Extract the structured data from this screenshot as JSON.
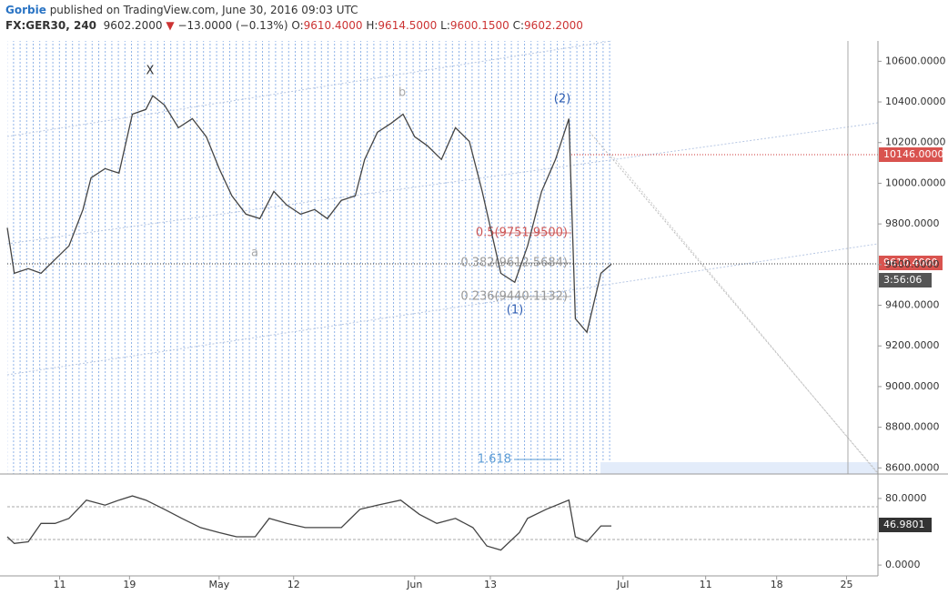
{
  "header": {
    "user": "Gorbie",
    "published": "published on TradingView.com, June 30, 2016 09:03 UTC",
    "symbol": "FX:GER30, 240",
    "last": "9602.2000",
    "change": "−13.0000 (−0.13%)",
    "open_label": "O:",
    "open": "9610.4000",
    "high_label": "H:",
    "high": "9614.5000",
    "low_label": "L:",
    "low": "9600.1500",
    "close_label": "C:",
    "close": "9602.2000"
  },
  "annotations": {
    "x": "X",
    "a": "a",
    "b": "b",
    "w2": "(2)",
    "w1": "(1)",
    "fib05": "0.5(9751.9500)",
    "fib0382": "0.382(9612.5684)",
    "fib0236": "0.236(9440.1132)",
    "fib1618": "1.618"
  },
  "price_labels": {
    "level": "10146.0000",
    "current": "9610.4000",
    "timer": "3:56:06",
    "rsi": "46.9801"
  },
  "chart_data": [
    {
      "type": "line",
      "color": "#444444",
      "x": [
        -4.5,
        -3.9,
        -2.7,
        -1.6,
        -0.4,
        0.8,
        2.0,
        2.7,
        3.9,
        5.1,
        6.25,
        7.4,
        8.0,
        9.0,
        10.2,
        11.4,
        12.6,
        13.7,
        14.8,
        16.0,
        17.2,
        18.4,
        19.5,
        20.7,
        21.9,
        23.0,
        24.2,
        25.4,
        26.2,
        27.3,
        28.5,
        29.5,
        30.5,
        31.6,
        32.8,
        34.0,
        35.2,
        36.3,
        37.1,
        37.9,
        39.1,
        40.2,
        41.4,
        42.6,
        43.75,
        44.3,
        45.3,
        46.5,
        47.4
      ],
      "values": [
        9781,
        9557,
        9580,
        9557,
        9625,
        9692,
        9871,
        10027,
        10072,
        10050,
        10340,
        10363,
        10430,
        10385,
        10273,
        10318,
        10229,
        10072,
        9938,
        9848,
        9826,
        9960,
        9893,
        9848,
        9871,
        9826,
        9916,
        9938,
        10117,
        10251,
        10296,
        10340,
        10229,
        10184,
        10117,
        10273,
        10206,
        9960,
        9759,
        9557,
        9513,
        9692,
        9960,
        10117,
        10318,
        9334,
        9267,
        9557,
        9602.2
      ],
      "xlim": [
        -4.5,
        70.3
      ],
      "ylim": [
        8570,
        10700
      ],
      "yticks": [
        {
          "value": 8600,
          "label": "8600.0000"
        },
        {
          "value": 8800,
          "label": "8800.0000"
        },
        {
          "value": 9000,
          "label": "9000.0000"
        },
        {
          "value": 9200,
          "label": "9200.0000"
        },
        {
          "value": 9400,
          "label": "9400.0000"
        },
        {
          "value": 9600,
          "label": "9600.0000"
        },
        {
          "value": 9800,
          "label": "9800.0000"
        },
        {
          "value": 10000,
          "label": "10000.0000"
        },
        {
          "value": 10200,
          "label": "10200.0000"
        },
        {
          "value": 10400,
          "label": "10400.0000"
        },
        {
          "value": 10600,
          "label": "10600.0000"
        }
      ]
    },
    {
      "type": "line",
      "color": "#444444",
      "x": [
        -4.5,
        -3.9,
        -2.7,
        -1.6,
        -0.4,
        0.8,
        2.3,
        3.9,
        5.1,
        6.25,
        7.4,
        9.0,
        10.5,
        12.1,
        13.7,
        15.2,
        16.8,
        18.0,
        19.5,
        21.1,
        22.7,
        24.2,
        25.8,
        27.3,
        29.3,
        30.9,
        32.4,
        34.0,
        35.5,
        36.7,
        37.9,
        39.5,
        40.2,
        41.8,
        43.75,
        44.3,
        45.3,
        46.5,
        47.4
      ],
      "values": [
        34,
        26,
        28,
        50,
        50,
        56,
        78,
        72,
        78,
        83,
        78,
        67,
        56,
        45,
        39,
        34,
        34,
        56,
        50,
        45,
        45,
        45,
        67,
        72,
        78,
        61,
        50,
        56,
        45,
        23,
        18,
        39,
        56,
        67,
        78,
        34,
        28,
        47,
        46.98
      ],
      "xlim": [
        -4.5,
        70.3
      ],
      "ylim": [
        -13,
        105
      ],
      "yticks": [
        {
          "value": 0,
          "label": "0.0000"
        },
        {
          "value": 80,
          "label": "80.0000"
        }
      ],
      "xticks": [
        {
          "value": 0,
          "label": "11"
        },
        {
          "value": 6,
          "label": "19"
        },
        {
          "value": 13.7,
          "label": "May"
        },
        {
          "value": 20.1,
          "label": "12"
        },
        {
          "value": 30.5,
          "label": "Jun"
        },
        {
          "value": 37,
          "label": "13"
        },
        {
          "value": 48.4,
          "label": "Jul"
        },
        {
          "value": 55.5,
          "label": "11"
        },
        {
          "value": 61.6,
          "label": "18"
        },
        {
          "value": 67.6,
          "label": "25"
        }
      ]
    }
  ]
}
